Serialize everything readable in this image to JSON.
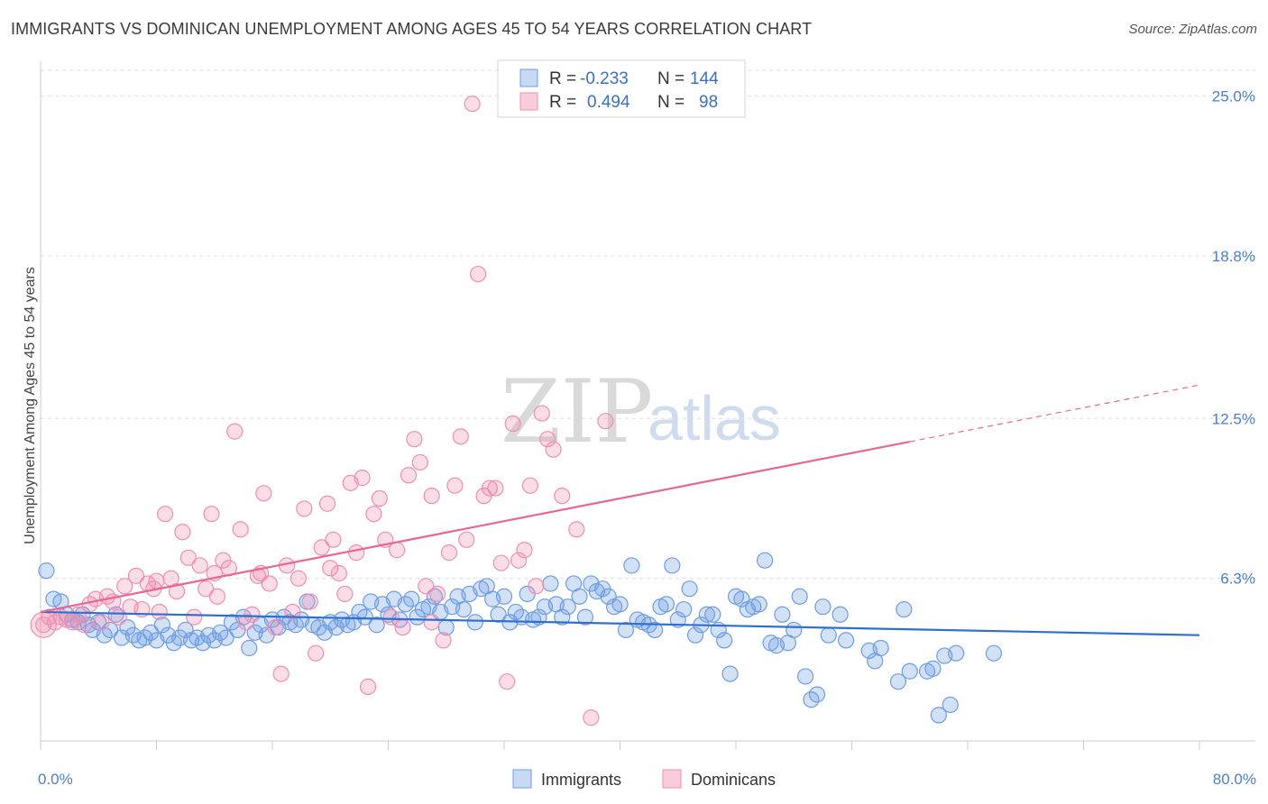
{
  "title": "IMMIGRANTS VS DOMINICAN UNEMPLOYMENT AMONG AGES 45 TO 54 YEARS CORRELATION CHART",
  "source": "Source: ZipAtlas.com",
  "watermark": {
    "zip": "ZIP",
    "atlas": "atlas"
  },
  "legend_top": {
    "rows": [
      {
        "r_label": "R =",
        "r_value": "-0.233",
        "n_label": "N =",
        "n_value": "144",
        "color": "#6d9de3"
      },
      {
        "r_label": "R =",
        "r_value": "0.494",
        "n_label": "N =",
        "n_value": "98",
        "color": "#f08fb0"
      }
    ]
  },
  "legend_bottom": [
    "Immigrants",
    "Dominicans"
  ],
  "chart_data": {
    "type": "scatter",
    "title": "IMMIGRANTS VS DOMINICAN UNEMPLOYMENT AMONG AGES 45 TO 54 YEARS CORRELATION CHART",
    "xlabel": "",
    "ylabel": "Unemployment Among Ages 45 to 54 years",
    "xlim": [
      0,
      80
    ],
    "ylim": [
      0,
      26
    ],
    "x_tick_labels": [
      "0.0%",
      "80.0%"
    ],
    "y_ticks": [
      6.3,
      12.5,
      18.8,
      25.0
    ],
    "y_tick_labels": [
      "6.3%",
      "12.5%",
      "18.8%",
      "25.0%"
    ],
    "grid": true,
    "legend_position": "top-center",
    "colors": {
      "immigrants": "#6d9de3",
      "dominicans": "#f08fb0",
      "immigrants_line": "#2f6fd0",
      "dominicans_line": "#e8668f"
    },
    "series": [
      {
        "name": "Immigrants",
        "trend": {
          "x0": 0,
          "y0": 5.0,
          "x1": 80,
          "y1": 4.1
        },
        "points": [
          [
            0.4,
            6.6
          ],
          [
            0.9,
            5.5
          ],
          [
            1.4,
            5.4
          ],
          [
            1.8,
            4.9
          ],
          [
            2.2,
            4.7
          ],
          [
            2.6,
            4.6
          ],
          [
            2.9,
            4.9
          ],
          [
            3.3,
            4.5
          ],
          [
            3.6,
            4.3
          ],
          [
            4.0,
            4.6
          ],
          [
            4.4,
            4.1
          ],
          [
            4.8,
            4.3
          ],
          [
            5.2,
            4.9
          ],
          [
            5.6,
            4.0
          ],
          [
            6.0,
            4.4
          ],
          [
            6.4,
            4.1
          ],
          [
            6.8,
            3.9
          ],
          [
            7.2,
            4.0
          ],
          [
            7.6,
            4.2
          ],
          [
            8.0,
            3.9
          ],
          [
            8.4,
            4.5
          ],
          [
            8.8,
            4.1
          ],
          [
            9.2,
            3.8
          ],
          [
            9.6,
            4.0
          ],
          [
            10.0,
            4.3
          ],
          [
            10.4,
            3.9
          ],
          [
            10.8,
            4.0
          ],
          [
            11.2,
            3.8
          ],
          [
            11.6,
            4.1
          ],
          [
            12.0,
            3.9
          ],
          [
            12.4,
            4.2
          ],
          [
            12.8,
            4.0
          ],
          [
            13.2,
            4.6
          ],
          [
            13.6,
            4.3
          ],
          [
            14.0,
            4.8
          ],
          [
            14.4,
            3.6
          ],
          [
            14.8,
            4.2
          ],
          [
            15.2,
            4.5
          ],
          [
            15.6,
            4.1
          ],
          [
            16.0,
            4.7
          ],
          [
            16.4,
            4.4
          ],
          [
            16.8,
            4.8
          ],
          [
            17.2,
            4.6
          ],
          [
            17.6,
            4.5
          ],
          [
            18.0,
            4.7
          ],
          [
            18.4,
            5.4
          ],
          [
            18.8,
            4.5
          ],
          [
            19.2,
            4.4
          ],
          [
            19.6,
            4.2
          ],
          [
            20.0,
            4.6
          ],
          [
            20.4,
            4.4
          ],
          [
            20.8,
            4.7
          ],
          [
            21.2,
            4.5
          ],
          [
            21.6,
            4.6
          ],
          [
            22.0,
            5.0
          ],
          [
            22.4,
            4.8
          ],
          [
            22.8,
            5.4
          ],
          [
            23.2,
            4.5
          ],
          [
            23.6,
            5.3
          ],
          [
            24.0,
            4.9
          ],
          [
            24.4,
            5.5
          ],
          [
            24.8,
            4.7
          ],
          [
            25.2,
            5.3
          ],
          [
            25.6,
            5.5
          ],
          [
            26.0,
            4.8
          ],
          [
            26.4,
            5.1
          ],
          [
            26.8,
            5.2
          ],
          [
            27.2,
            5.6
          ],
          [
            27.6,
            5.0
          ],
          [
            28.0,
            4.4
          ],
          [
            28.4,
            5.2
          ],
          [
            28.8,
            5.6
          ],
          [
            29.2,
            5.1
          ],
          [
            29.6,
            5.7
          ],
          [
            30.0,
            4.6
          ],
          [
            30.4,
            5.9
          ],
          [
            30.8,
            6.0
          ],
          [
            31.2,
            5.5
          ],
          [
            31.6,
            4.9
          ],
          [
            32.0,
            5.6
          ],
          [
            32.4,
            4.6
          ],
          [
            32.8,
            5.0
          ],
          [
            33.2,
            4.8
          ],
          [
            33.6,
            5.7
          ],
          [
            34.0,
            4.7
          ],
          [
            34.4,
            4.8
          ],
          [
            34.8,
            5.2
          ],
          [
            35.2,
            6.1
          ],
          [
            35.6,
            5.3
          ],
          [
            36.0,
            4.8
          ],
          [
            36.4,
            5.2
          ],
          [
            36.8,
            6.1
          ],
          [
            37.2,
            5.6
          ],
          [
            37.6,
            4.8
          ],
          [
            38.0,
            6.1
          ],
          [
            38.4,
            5.8
          ],
          [
            38.8,
            5.9
          ],
          [
            39.2,
            5.6
          ],
          [
            39.6,
            5.2
          ],
          [
            40.0,
            5.3
          ],
          [
            40.4,
            4.3
          ],
          [
            40.8,
            6.8
          ],
          [
            41.2,
            4.7
          ],
          [
            41.6,
            4.6
          ],
          [
            42.0,
            4.5
          ],
          [
            42.4,
            4.3
          ],
          [
            42.8,
            5.2
          ],
          [
            43.2,
            5.3
          ],
          [
            43.6,
            6.8
          ],
          [
            44.0,
            4.7
          ],
          [
            44.4,
            5.1
          ],
          [
            44.8,
            5.9
          ],
          [
            45.2,
            4.1
          ],
          [
            45.6,
            4.5
          ],
          [
            46.0,
            4.9
          ],
          [
            46.4,
            4.9
          ],
          [
            46.8,
            4.3
          ],
          [
            47.2,
            3.9
          ],
          [
            47.6,
            2.6
          ],
          [
            48.0,
            5.6
          ],
          [
            48.4,
            5.5
          ],
          [
            48.8,
            5.1
          ],
          [
            49.2,
            5.2
          ],
          [
            49.6,
            5.3
          ],
          [
            50.0,
            7.0
          ],
          [
            50.4,
            3.8
          ],
          [
            50.8,
            3.7
          ],
          [
            51.2,
            4.9
          ],
          [
            51.6,
            3.8
          ],
          [
            52.0,
            4.3
          ],
          [
            52.4,
            5.6
          ],
          [
            52.8,
            2.5
          ],
          [
            53.2,
            1.6
          ],
          [
            53.6,
            1.8
          ],
          [
            54.0,
            5.2
          ],
          [
            54.4,
            4.1
          ],
          [
            55.2,
            4.9
          ],
          [
            55.6,
            3.9
          ],
          [
            57.2,
            3.5
          ],
          [
            57.6,
            3.1
          ],
          [
            58.0,
            3.6
          ],
          [
            59.2,
            2.3
          ],
          [
            59.6,
            5.1
          ],
          [
            60.0,
            2.7
          ],
          [
            61.2,
            2.7
          ],
          [
            61.6,
            2.8
          ],
          [
            62.0,
            1.0
          ],
          [
            62.4,
            3.3
          ],
          [
            62.8,
            1.4
          ],
          [
            63.2,
            3.4
          ],
          [
            65.8,
            3.4
          ]
        ]
      },
      {
        "name": "Dominicans",
        "trend": {
          "x0": 0,
          "y0": 5.0,
          "x1": 60,
          "y1": 11.6,
          "dash_x1": 80,
          "dash_y1": 13.8
        },
        "points": [
          [
            0.2,
            4.5
          ],
          [
            0.6,
            4.8
          ],
          [
            1.0,
            4.6
          ],
          [
            1.4,
            4.8
          ],
          [
            1.8,
            4.7
          ],
          [
            2.2,
            4.6
          ],
          [
            2.6,
            4.9
          ],
          [
            3.0,
            4.5
          ],
          [
            3.4,
            5.3
          ],
          [
            3.8,
            5.5
          ],
          [
            4.2,
            4.6
          ],
          [
            4.6,
            5.6
          ],
          [
            5.0,
            5.4
          ],
          [
            5.4,
            4.8
          ],
          [
            5.8,
            6.0
          ],
          [
            6.2,
            5.2
          ],
          [
            6.6,
            6.4
          ],
          [
            7.0,
            5.1
          ],
          [
            7.4,
            6.1
          ],
          [
            7.8,
            5.9
          ],
          [
            8.2,
            5.0
          ],
          [
            8.6,
            8.8
          ],
          [
            9.0,
            6.3
          ],
          [
            9.4,
            5.8
          ],
          [
            9.8,
            8.1
          ],
          [
            10.2,
            7.1
          ],
          [
            10.6,
            4.8
          ],
          [
            11.0,
            6.8
          ],
          [
            11.4,
            5.9
          ],
          [
            11.8,
            8.8
          ],
          [
            12.2,
            5.6
          ],
          [
            12.6,
            7.0
          ],
          [
            13.0,
            6.7
          ],
          [
            13.4,
            12.0
          ],
          [
            13.8,
            8.2
          ],
          [
            14.2,
            4.6
          ],
          [
            14.6,
            4.9
          ],
          [
            15.0,
            6.4
          ],
          [
            15.4,
            9.6
          ],
          [
            15.8,
            6.1
          ],
          [
            16.2,
            4.4
          ],
          [
            16.6,
            2.6
          ],
          [
            17.0,
            6.8
          ],
          [
            17.4,
            5.0
          ],
          [
            17.8,
            6.3
          ],
          [
            18.2,
            9.0
          ],
          [
            18.6,
            5.4
          ],
          [
            19.0,
            3.4
          ],
          [
            19.4,
            7.5
          ],
          [
            19.8,
            9.2
          ],
          [
            20.2,
            7.8
          ],
          [
            20.6,
            6.5
          ],
          [
            21.0,
            5.7
          ],
          [
            21.4,
            10.0
          ],
          [
            21.8,
            7.3
          ],
          [
            22.2,
            10.2
          ],
          [
            22.6,
            2.1
          ],
          [
            23.0,
            8.8
          ],
          [
            23.4,
            9.4
          ],
          [
            23.8,
            7.8
          ],
          [
            24.2,
            4.8
          ],
          [
            24.6,
            7.4
          ],
          [
            25.0,
            4.4
          ],
          [
            25.4,
            10.3
          ],
          [
            25.8,
            11.7
          ],
          [
            26.2,
            10.8
          ],
          [
            26.6,
            6.0
          ],
          [
            27.0,
            9.5
          ],
          [
            27.4,
            5.7
          ],
          [
            27.8,
            3.9
          ],
          [
            28.2,
            7.3
          ],
          [
            28.6,
            9.9
          ],
          [
            29.0,
            11.8
          ],
          [
            29.4,
            7.8
          ],
          [
            29.8,
            24.7
          ],
          [
            30.2,
            18.1
          ],
          [
            30.6,
            9.5
          ],
          [
            31.0,
            9.8
          ],
          [
            31.4,
            9.8
          ],
          [
            31.8,
            6.9
          ],
          [
            32.2,
            2.3
          ],
          [
            32.6,
            12.3
          ],
          [
            33.0,
            7.0
          ],
          [
            33.4,
            7.4
          ],
          [
            33.8,
            9.9
          ],
          [
            34.2,
            6.0
          ],
          [
            34.6,
            12.7
          ],
          [
            35.0,
            11.7
          ],
          [
            35.4,
            11.3
          ],
          [
            36.0,
            9.5
          ],
          [
            37.0,
            8.2
          ],
          [
            38.0,
            0.9
          ],
          [
            39.0,
            12.4
          ],
          [
            15.2,
            6.5
          ],
          [
            12.0,
            6.5
          ],
          [
            20.0,
            6.7
          ],
          [
            27.0,
            4.6
          ],
          [
            8.0,
            6.2
          ]
        ]
      }
    ]
  }
}
